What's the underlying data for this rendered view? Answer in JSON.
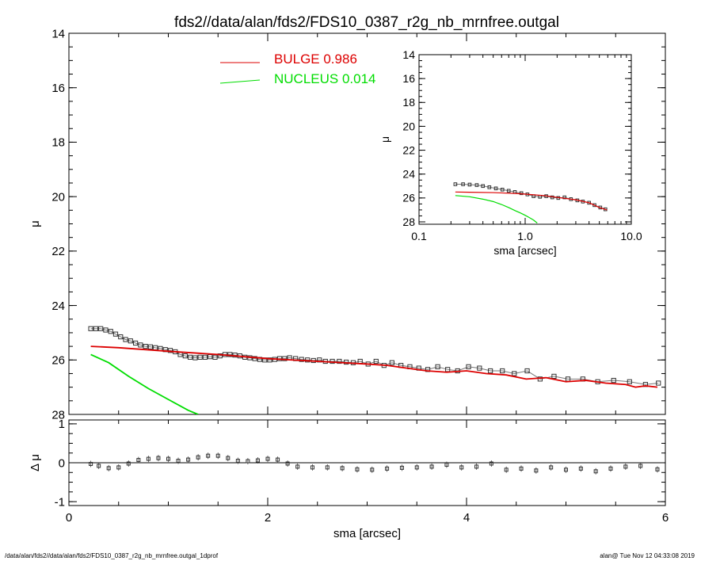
{
  "title": "fds2//data/alan/fds2/FDS10_0387_r2g_nb_mrnfree.outgal",
  "footer_left": "/data/alan/fds2//data/alan/fds2/FDS10_0387_r2g_nb_mrnfree.outgal_1dprof",
  "footer_right": "alan@  Tue Nov 12 04:33:08 2019",
  "colors": {
    "axes": "#000000",
    "bulge": "#dd0000",
    "nucleus": "#00dd00",
    "data": "#333333"
  },
  "legend": [
    {
      "label": "BULGE  0.986",
      "color": "#dd0000"
    },
    {
      "label": "NUCLEUS  0.014",
      "color": "#00dd00"
    }
  ],
  "chart_data": [
    {
      "type": "scatter",
      "panel": "main",
      "xlabel": "",
      "ylabel": "μ",
      "xlim": [
        0,
        6
      ],
      "ylim": [
        28,
        14
      ],
      "yreversed": true,
      "xticks": [
        "0",
        "2",
        "4",
        "6"
      ],
      "yticks": [
        "14",
        "16",
        "18",
        "20",
        "22",
        "24",
        "26",
        "28"
      ],
      "series": [
        {
          "name": "data",
          "x": [
            0.22,
            0.27,
            0.32,
            0.37,
            0.42,
            0.47,
            0.52,
            0.57,
            0.62,
            0.67,
            0.72,
            0.77,
            0.82,
            0.87,
            0.92,
            0.97,
            1.02,
            1.07,
            1.12,
            1.17,
            1.22,
            1.27,
            1.32,
            1.37,
            1.42,
            1.47,
            1.52,
            1.57,
            1.62,
            1.67,
            1.72,
            1.77,
            1.82,
            1.87,
            1.92,
            1.97,
            2.02,
            2.07,
            2.12,
            2.17,
            2.22,
            2.28,
            2.34,
            2.4,
            2.46,
            2.52,
            2.58,
            2.65,
            2.72,
            2.79,
            2.86,
            2.93,
            3.01,
            3.09,
            3.17,
            3.25,
            3.34,
            3.43,
            3.52,
            3.61,
            3.71,
            3.81,
            3.91,
            4.02,
            4.13,
            4.24,
            4.36,
            4.48,
            4.61,
            4.74,
            4.88,
            5.02,
            5.17,
            5.32,
            5.48,
            5.64,
            5.8,
            5.93
          ],
          "y": [
            24.85,
            24.85,
            24.85,
            24.9,
            24.95,
            25.05,
            25.15,
            25.25,
            25.3,
            25.38,
            25.45,
            25.5,
            25.52,
            25.55,
            25.58,
            25.62,
            25.65,
            25.7,
            25.8,
            25.85,
            25.9,
            25.92,
            25.9,
            25.9,
            25.88,
            25.9,
            25.85,
            25.8,
            25.8,
            25.82,
            25.85,
            25.9,
            25.92,
            25.95,
            25.98,
            26.0,
            26.0,
            25.98,
            25.95,
            25.95,
            25.92,
            25.95,
            25.98,
            26.0,
            26.02,
            26.0,
            26.05,
            26.05,
            26.05,
            26.08,
            26.1,
            26.05,
            26.15,
            26.05,
            26.2,
            26.1,
            26.2,
            26.25,
            26.3,
            26.35,
            26.25,
            26.35,
            26.4,
            26.25,
            26.3,
            26.4,
            26.4,
            26.5,
            26.4,
            26.7,
            26.6,
            26.7,
            26.7,
            26.8,
            26.75,
            26.8,
            26.9,
            26.85
          ]
        },
        {
          "name": "BULGE  0.986",
          "x": [
            0.22,
            0.5,
            1.0,
            1.5,
            2.0,
            2.5,
            3.0,
            3.2,
            3.4,
            3.6,
            3.8,
            4.0,
            4.2,
            4.4,
            4.6,
            4.8,
            5.0,
            5.2,
            5.4,
            5.6,
            5.7,
            5.8,
            5.92
          ],
          "y": [
            25.5,
            25.55,
            25.68,
            25.8,
            25.95,
            26.05,
            26.15,
            26.2,
            26.3,
            26.4,
            26.45,
            26.4,
            26.5,
            26.55,
            26.7,
            26.65,
            26.8,
            26.75,
            26.85,
            26.9,
            27.0,
            26.95,
            27.0
          ]
        },
        {
          "name": "NUCLEUS  0.014",
          "x": [
            0.22,
            0.4,
            0.6,
            0.8,
            1.0,
            1.2,
            1.3
          ],
          "y": [
            25.8,
            26.1,
            26.6,
            27.05,
            27.45,
            27.85,
            28.0
          ]
        }
      ]
    },
    {
      "type": "scatter",
      "panel": "residuals",
      "xlabel": "sma [arcsec]",
      "ylabel": "Δ μ",
      "xlim": [
        0,
        6
      ],
      "ylim": [
        -1.1,
        1.1
      ],
      "xticks": [
        "0",
        "2",
        "4",
        "6"
      ],
      "yticks": [
        "-1",
        "0",
        "1"
      ],
      "series": [
        {
          "name": "residual",
          "x": [
            0.22,
            0.3,
            0.4,
            0.5,
            0.6,
            0.7,
            0.8,
            0.9,
            1.0,
            1.1,
            1.2,
            1.3,
            1.4,
            1.5,
            1.6,
            1.7,
            1.8,
            1.9,
            2.0,
            2.1,
            2.2,
            2.3,
            2.45,
            2.6,
            2.75,
            2.9,
            3.05,
            3.2,
            3.35,
            3.5,
            3.65,
            3.8,
            3.95,
            4.1,
            4.25,
            4.4,
            4.55,
            4.7,
            4.85,
            5.0,
            5.15,
            5.3,
            5.45,
            5.6,
            5.75,
            5.92
          ],
          "y": [
            -0.03,
            -0.08,
            -0.14,
            -0.12,
            -0.02,
            0.07,
            0.1,
            0.12,
            0.1,
            0.05,
            0.08,
            0.14,
            0.18,
            0.18,
            0.12,
            0.05,
            0.04,
            0.06,
            0.1,
            0.08,
            -0.02,
            -0.1,
            -0.12,
            -0.12,
            -0.14,
            -0.17,
            -0.18,
            -0.15,
            -0.13,
            -0.12,
            -0.1,
            -0.05,
            -0.12,
            -0.1,
            -0.02,
            -0.18,
            -0.15,
            -0.2,
            -0.12,
            -0.18,
            -0.15,
            -0.22,
            -0.15,
            -0.1,
            -0.08,
            -0.17
          ]
        }
      ]
    },
    {
      "type": "scatter",
      "panel": "inset",
      "xlabel": "sma [arcsec]",
      "ylabel": "μ",
      "xscale": "log",
      "xlim": [
        0.1,
        10
      ],
      "ylim": [
        28.2,
        14
      ],
      "yreversed": true,
      "xticks": [
        "0.1",
        "1.0",
        "10.0"
      ],
      "yticks": [
        "14",
        "16",
        "18",
        "20",
        "22",
        "24",
        "26",
        "28"
      ],
      "series": [
        {
          "name": "data",
          "x": [
            0.22,
            0.26,
            0.3,
            0.35,
            0.4,
            0.46,
            0.53,
            0.61,
            0.7,
            0.8,
            0.92,
            1.05,
            1.2,
            1.38,
            1.58,
            1.8,
            2.05,
            2.35,
            2.7,
            3.1,
            3.5,
            4.0,
            4.5,
            5.1,
            5.7
          ],
          "y": [
            24.85,
            24.85,
            24.88,
            24.92,
            25.0,
            25.1,
            25.2,
            25.3,
            25.4,
            25.5,
            25.6,
            25.7,
            25.85,
            25.9,
            25.85,
            25.95,
            26.0,
            25.95,
            26.1,
            26.2,
            26.3,
            26.4,
            26.6,
            26.8,
            26.95
          ]
        },
        {
          "name": "BULGE  0.986",
          "x": [
            0.22,
            0.3,
            0.5,
            0.8,
            1.0,
            1.5,
            2.0,
            3.0,
            4.0,
            5.0,
            5.9
          ],
          "y": [
            25.5,
            25.52,
            25.55,
            25.62,
            25.68,
            25.8,
            25.95,
            26.15,
            26.4,
            26.8,
            27.0
          ]
        },
        {
          "name": "NUCLEUS  0.014",
          "x": [
            0.22,
            0.3,
            0.4,
            0.5,
            0.6,
            0.7,
            0.8,
            0.9,
            1.0,
            1.1,
            1.2,
            1.3
          ],
          "y": [
            25.8,
            25.9,
            26.1,
            26.3,
            26.55,
            26.8,
            27.05,
            27.25,
            27.45,
            27.65,
            27.85,
            28.1
          ]
        }
      ]
    }
  ]
}
